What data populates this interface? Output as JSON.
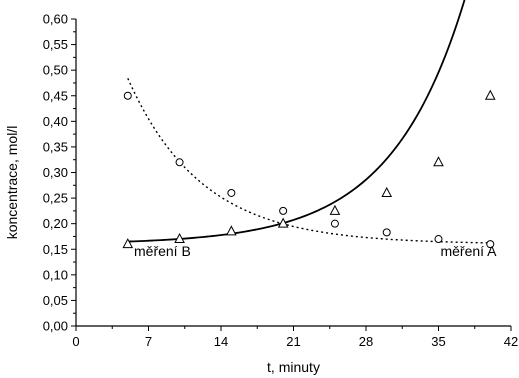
{
  "chart_data": {
    "type": "scatter",
    "xlabel": "t, minuty",
    "ylabel": "koncentrace, mol/l",
    "xlim": [
      0,
      42
    ],
    "ylim": [
      0,
      0.6
    ],
    "xticks": [
      0,
      7,
      14,
      21,
      28,
      35,
      42
    ],
    "yticks": [
      0,
      0.05,
      0.1,
      0.15,
      0.2,
      0.25,
      0.3,
      0.35,
      0.4,
      0.45,
      0.5,
      0.55,
      0.6
    ],
    "xtick_labels": [
      "0",
      "7",
      "14",
      "21",
      "28",
      "35",
      "42"
    ],
    "ytick_labels": [
      "0,00",
      "0,05",
      "0,10",
      "0,15",
      "0,20",
      "0,25",
      "0,30",
      "0,35",
      "0,40",
      "0,45",
      "0,50",
      "0,55",
      "0,60"
    ],
    "grid": false,
    "series": [
      {
        "name": "měření A",
        "marker": "circle",
        "line": "dotted",
        "x": [
          5,
          10,
          15,
          20,
          25,
          30,
          35,
          40
        ],
        "y": [
          0.45,
          0.32,
          0.26,
          0.225,
          0.2,
          0.183,
          0.17,
          0.16
        ],
        "fit": {
          "type": "exp_decay",
          "y0": 0.16,
          "A": 0.6525,
          "k": 0.14
        }
      },
      {
        "name": "měření B",
        "marker": "triangle",
        "line": "solid",
        "x": [
          5,
          10,
          15,
          20,
          25,
          30,
          35,
          40
        ],
        "y": [
          0.16,
          0.17,
          0.185,
          0.2,
          0.225,
          0.26,
          0.32,
          0.45
        ],
        "fit": {
          "type": "exp_growth",
          "y0": 0.16,
          "A": 0.0025,
          "k": 0.14
        }
      }
    ],
    "annotations": [
      {
        "text": "měření B",
        "series": "měření B"
      },
      {
        "text": "měření A",
        "series": "měření A"
      }
    ]
  }
}
